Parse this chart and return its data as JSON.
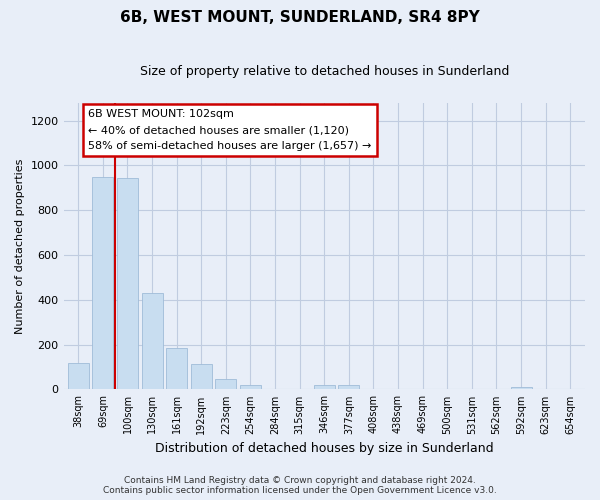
{
  "title": "6B, WEST MOUNT, SUNDERLAND, SR4 8PY",
  "subtitle": "Size of property relative to detached houses in Sunderland",
  "xlabel": "Distribution of detached houses by size in Sunderland",
  "ylabel": "Number of detached properties",
  "bar_labels": [
    "38sqm",
    "69sqm",
    "100sqm",
    "130sqm",
    "161sqm",
    "192sqm",
    "223sqm",
    "254sqm",
    "284sqm",
    "315sqm",
    "346sqm",
    "377sqm",
    "408sqm",
    "438sqm",
    "469sqm",
    "500sqm",
    "531sqm",
    "562sqm",
    "592sqm",
    "623sqm",
    "654sqm"
  ],
  "bar_values": [
    120,
    950,
    945,
    430,
    185,
    112,
    47,
    22,
    0,
    0,
    18,
    18,
    0,
    0,
    0,
    0,
    0,
    0,
    12,
    0,
    0
  ],
  "bar_color": "#c8ddf0",
  "bar_edge_color": "#a0bcd8",
  "highlight_color": "#cc0000",
  "highlight_index": 2,
  "annotation_title": "6B WEST MOUNT: 102sqm",
  "annotation_line1": "← 40% of detached houses are smaller (1,120)",
  "annotation_line2": "58% of semi-detached houses are larger (1,657) →",
  "ylim": [
    0,
    1280
  ],
  "yticks": [
    0,
    200,
    400,
    600,
    800,
    1000,
    1200
  ],
  "footer_line1": "Contains HM Land Registry data © Crown copyright and database right 2024.",
  "footer_line2": "Contains public sector information licensed under the Open Government Licence v3.0.",
  "bg_color": "#e8eef8",
  "plot_bg_color": "#e8eef8",
  "grid_color": "#c0cce0"
}
